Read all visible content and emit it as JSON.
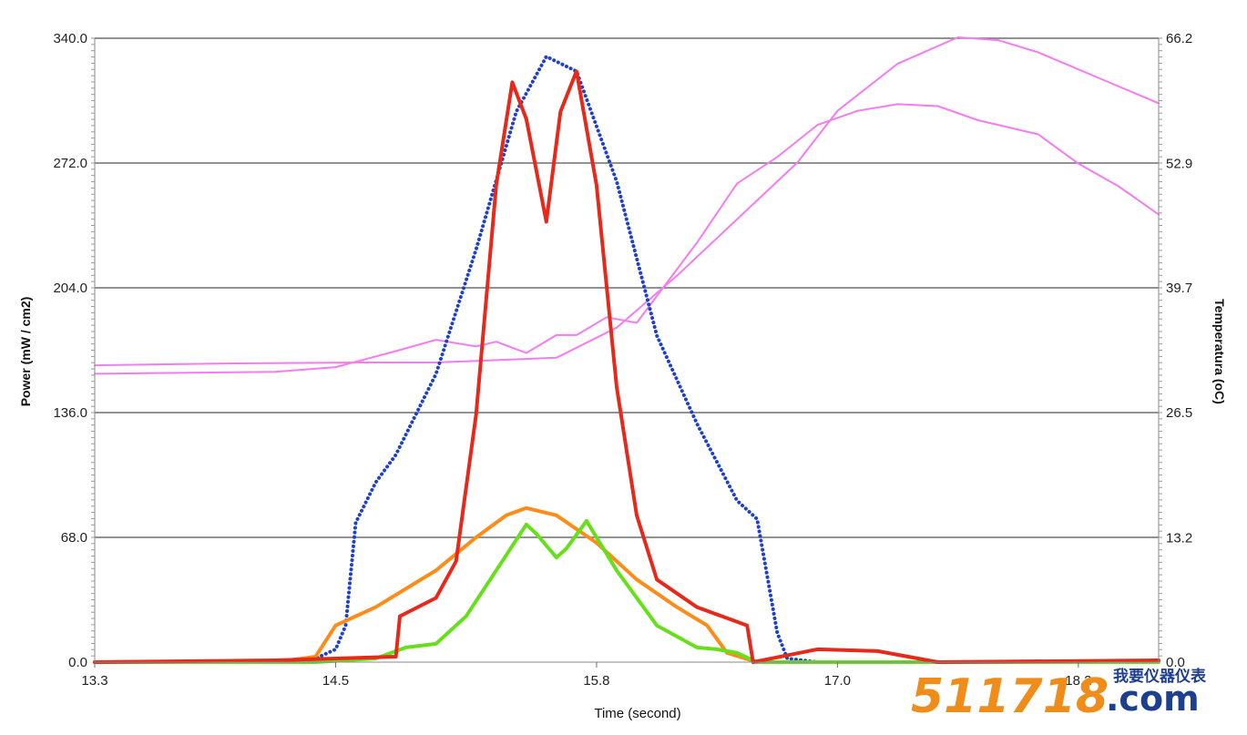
{
  "chart_data": {
    "type": "line",
    "xlabel": "Time (second)",
    "ylabel": "Power (mW / cm2)",
    "y2label": "Temperatura (oC)",
    "xlim": [
      13.3,
      18.6
    ],
    "ylim": [
      0,
      340
    ],
    "y2lim": [
      0,
      66.2
    ],
    "x_ticks": [
      "13.3",
      "14.5",
      "15.8",
      "17.0",
      "18.2"
    ],
    "x_tick_values": [
      13.3,
      14.5,
      15.8,
      17.0,
      18.2
    ],
    "y_ticks": [
      "0.0",
      "68.0",
      "136.0",
      "204.0",
      "272.0",
      "340.0"
    ],
    "y_tick_values": [
      0,
      68,
      136,
      204,
      272,
      340
    ],
    "y2_ticks": [
      "0.0",
      "13.2",
      "26.5",
      "39.7",
      "52.9",
      "66.2"
    ],
    "y2_tick_values": [
      0,
      13.2,
      26.5,
      39.7,
      52.9,
      66.2
    ],
    "grid": "horizontal",
    "series": [
      {
        "color": "#1f3fcf",
        "style": "dotted",
        "axis": "left",
        "x": [
          13.3,
          14.2,
          14.4,
          14.5,
          14.55,
          14.6,
          14.7,
          14.8,
          15.0,
          15.2,
          15.4,
          15.55,
          15.7,
          15.9,
          16.1,
          16.3,
          16.5,
          16.6,
          16.7,
          16.75,
          16.9,
          18.6
        ],
        "y": [
          0,
          0,
          2,
          7,
          20,
          76,
          98,
          113,
          157,
          225,
          300,
          330,
          322,
          262,
          178,
          130,
          88,
          78,
          16,
          2,
          0,
          0
        ]
      },
      {
        "color": "#e8281a",
        "style": "solid",
        "axis": "left",
        "x": [
          13.3,
          14.2,
          14.5,
          14.8,
          14.82,
          15.0,
          15.1,
          15.2,
          15.3,
          15.38,
          15.45,
          15.55,
          15.62,
          15.7,
          15.8,
          15.9,
          16.0,
          16.1,
          16.3,
          16.55,
          16.58,
          16.9,
          17.2,
          17.5,
          18.6
        ],
        "y": [
          0,
          1,
          2,
          3,
          25,
          35,
          55,
          135,
          260,
          316,
          296,
          240,
          300,
          322,
          260,
          150,
          80,
          45,
          30,
          20,
          0,
          7,
          6,
          0,
          1
        ]
      },
      {
        "color": "#ff8c19",
        "style": "solid",
        "axis": "left",
        "x": [
          13.3,
          14.2,
          14.4,
          14.5,
          14.7,
          15.0,
          15.2,
          15.35,
          15.45,
          15.6,
          15.8,
          16.0,
          16.2,
          16.35,
          16.45,
          16.6,
          18.6
        ],
        "y": [
          0,
          0,
          3,
          20,
          30,
          50,
          68,
          80,
          84,
          80,
          65,
          45,
          30,
          20,
          5,
          0,
          0
        ]
      },
      {
        "color": "#66e01a",
        "style": "solid",
        "axis": "left",
        "x": [
          13.3,
          14.4,
          14.7,
          14.85,
          15.0,
          15.15,
          15.3,
          15.45,
          15.5,
          15.6,
          15.65,
          15.75,
          15.9,
          16.1,
          16.3,
          16.4,
          16.5,
          16.6,
          18.6
        ],
        "y": [
          0,
          0,
          2,
          8,
          10,
          25,
          50,
          75,
          70,
          57,
          62,
          77,
          50,
          20,
          8,
          7,
          5,
          0,
          0
        ]
      },
      {
        "color": "#f47cf0",
        "style": "solid",
        "axis": "right",
        "x": [
          13.3,
          14.0,
          14.6,
          15.0,
          15.6,
          15.9,
          16.2,
          16.6,
          16.8,
          17.0,
          17.3,
          17.6,
          17.8,
          18.0,
          18.3,
          18.6
        ],
        "y": [
          31.5,
          31.7,
          31.8,
          31.8,
          32.3,
          35.5,
          41,
          49,
          53,
          58.5,
          63.5,
          66.3,
          66,
          64.7,
          62,
          59.3
        ]
      },
      {
        "color": "#f47cf0",
        "style": "solid",
        "axis": "right",
        "x": [
          13.3,
          14.2,
          14.5,
          14.8,
          15.0,
          15.2,
          15.3,
          15.45,
          15.6,
          15.7,
          15.85,
          16.0,
          16.3,
          16.5,
          16.7,
          16.9,
          17.1,
          17.3,
          17.5,
          17.7,
          18.0,
          18.2,
          18.4,
          18.6
        ],
        "y": [
          30.6,
          30.8,
          31.3,
          33,
          34.2,
          33.5,
          34,
          32.8,
          34.7,
          34.7,
          36.6,
          36,
          44.5,
          50.8,
          53.6,
          57,
          58.5,
          59.2,
          59,
          57.5,
          56,
          52.9,
          50.5,
          47.5
        ]
      }
    ]
  },
  "watermark": {
    "number": "511718",
    "dot_com": ".com",
    "cn_text": "我要仪器仪表"
  }
}
